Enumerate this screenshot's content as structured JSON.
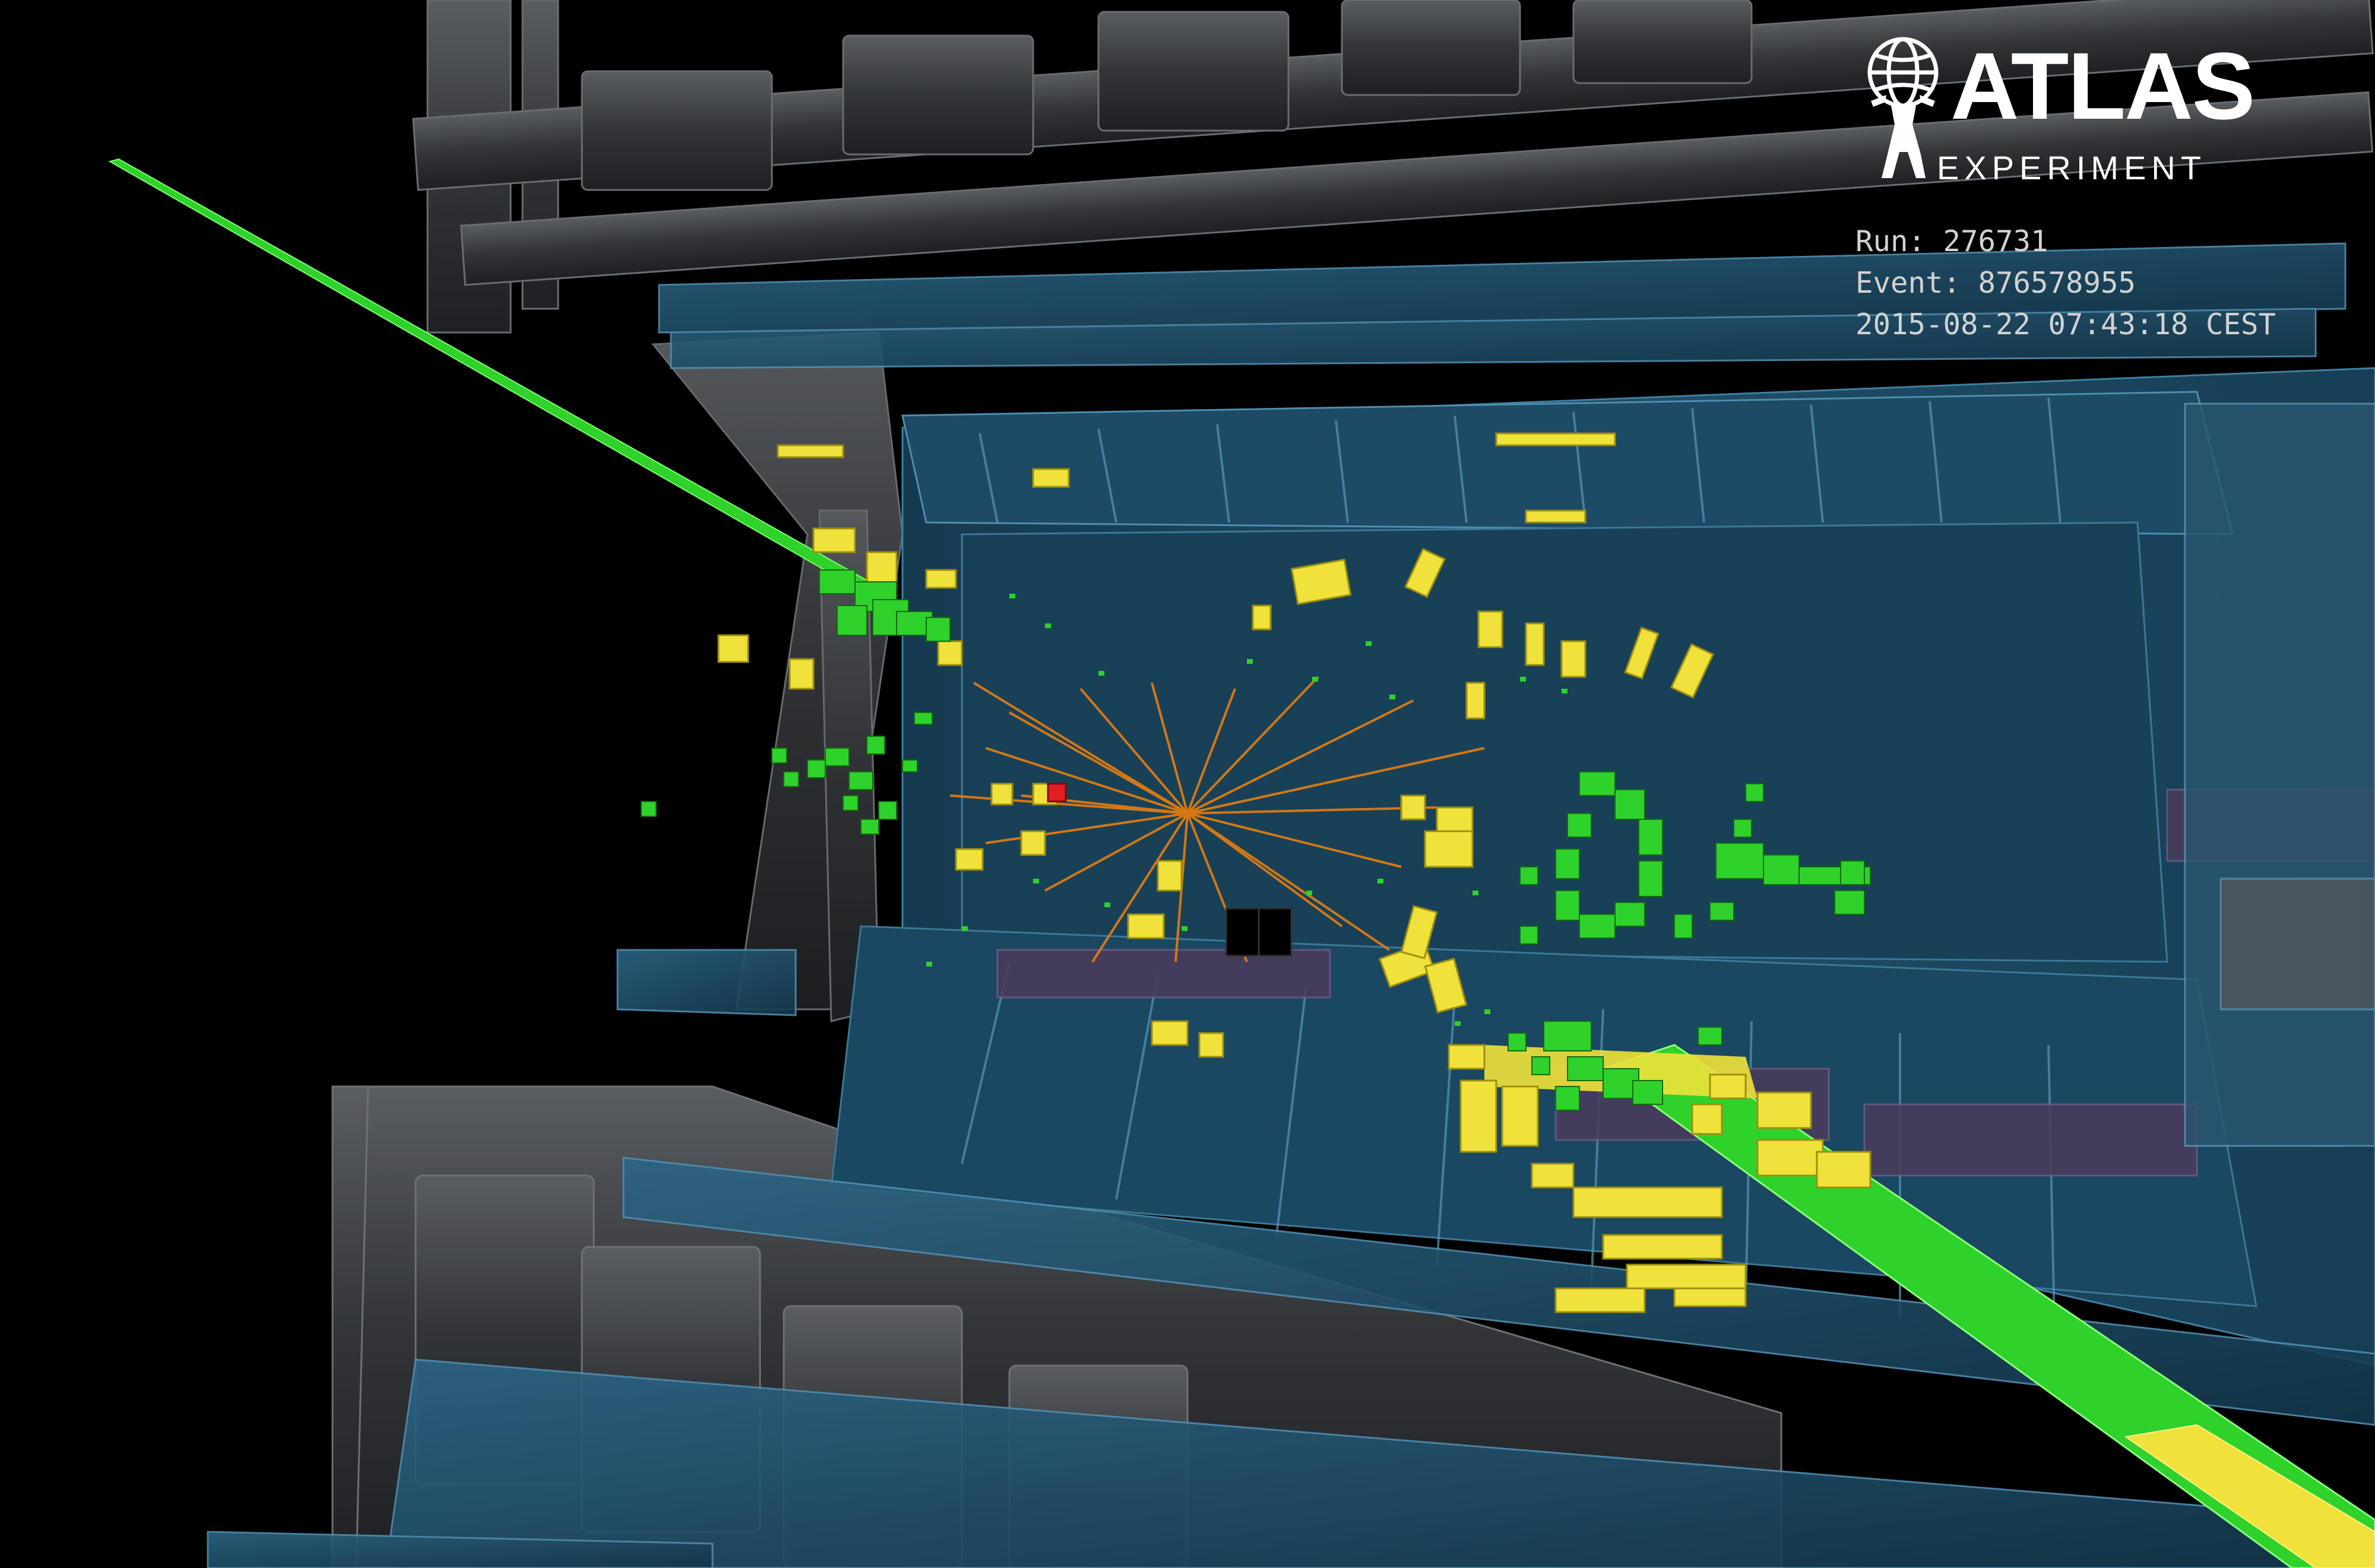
{
  "logo": {
    "name": "ATLAS",
    "subtitle": "EXPERIMENT"
  },
  "event_info": {
    "run_label": "Run:",
    "run": "276731",
    "event_label": "Event:",
    "event": "876578955",
    "timestamp": "2015-08-22 07:43:18 CEST"
  },
  "colors": {
    "background": "#000000",
    "detector_steel": "#4a4d52",
    "calorimeter_blue": "#1e4a63",
    "muon_chamber": "#4b3b5c",
    "energy_deposit_yellow": "#f0e23a",
    "track_green": "#2fd12b",
    "particle_track_orange": "#e07a10",
    "hot_cell_red": "#e02020",
    "text": "#d2d2d2"
  }
}
